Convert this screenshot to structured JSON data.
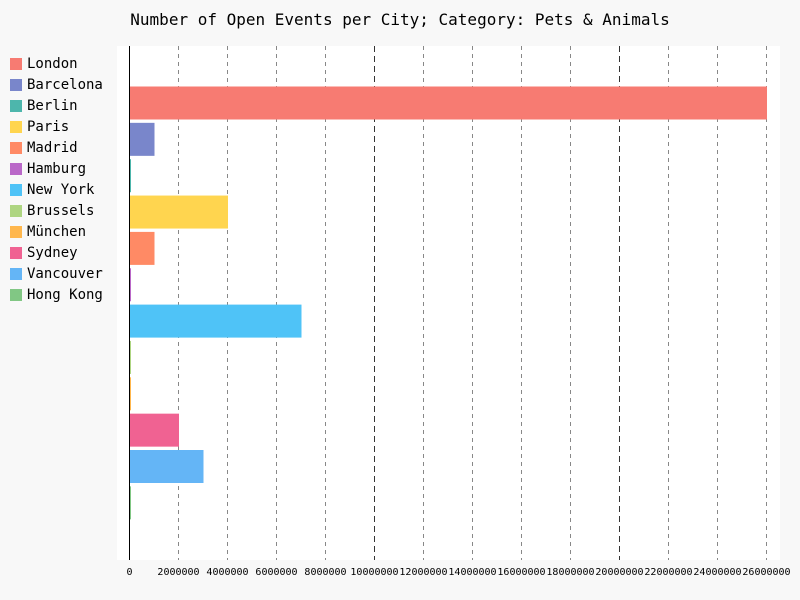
{
  "chart_data": {
    "type": "bar",
    "orientation": "horizontal",
    "title": "Number of Open Events per City; Category: Pets & Animals",
    "xlabel": "",
    "ylabel": "",
    "xlim": [
      0,
      26000000
    ],
    "x_ticks": [
      "0",
      "2000000",
      "4000000",
      "6000000",
      "8000000",
      "10000000",
      "12000000",
      "14000000",
      "16000000",
      "18000000",
      "20000000",
      "22000000",
      "24000000",
      "26000000"
    ],
    "major_gridlines_at": [
      10000000,
      20000000
    ],
    "legend_position": "left",
    "grid": true,
    "categories": [
      "London",
      "Barcelona",
      "Berlin",
      "Paris",
      "Madrid",
      "Hamburg",
      "New York",
      "Brussels",
      "München",
      "Sydney",
      "Vancouver",
      "Hong Kong"
    ],
    "values": [
      26000000,
      1000000,
      20000,
      4000000,
      1000000,
      20000,
      7000000,
      20000,
      20000,
      2000000,
      3000000,
      20000
    ],
    "colors": [
      "#f77b72",
      "#7986cb",
      "#4db6ac",
      "#ffd54f",
      "#ff8a65",
      "#ba68c8",
      "#4fc3f7",
      "#aed581",
      "#ffb74d",
      "#f06292",
      "#64b5f6",
      "#81c784"
    ]
  }
}
